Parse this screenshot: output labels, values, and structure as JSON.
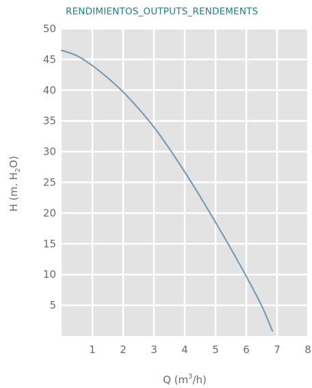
{
  "colors": {
    "title": "#1f7d8f",
    "plot_background": "#e3e3e3",
    "grid": "#ffffff",
    "curve": "#7b9cb0",
    "text": "#6a6a6a"
  },
  "chart_data": {
    "type": "line",
    "title": "RENDIMIENTOS_OUTPUTS_RENDEMENTS",
    "xlabel": {
      "prefix": "Q (m",
      "superscript": "3",
      "suffix": "/h)"
    },
    "ylabel": {
      "prefix": "H (m. H",
      "subscript": "2",
      "suffix": "O)"
    },
    "xlim": [
      0,
      8
    ],
    "ylim": [
      0,
      50
    ],
    "x_ticks": [
      1,
      2,
      3,
      4,
      5,
      6,
      7,
      8
    ],
    "y_ticks": [
      5,
      10,
      15,
      20,
      25,
      30,
      35,
      40,
      45,
      50
    ],
    "grid": true,
    "series": [
      {
        "x": [
          0,
          0.5,
          1,
          1.5,
          2,
          2.5,
          3,
          3.5,
          4,
          4.5,
          5,
          5.5,
          6,
          6.5,
          6.85
        ],
        "y": [
          46.5,
          45.6,
          44.0,
          42.0,
          39.7,
          37.0,
          34.0,
          30.5,
          26.7,
          22.7,
          18.5,
          14.2,
          9.7,
          4.9,
          0.8
        ]
      }
    ]
  }
}
